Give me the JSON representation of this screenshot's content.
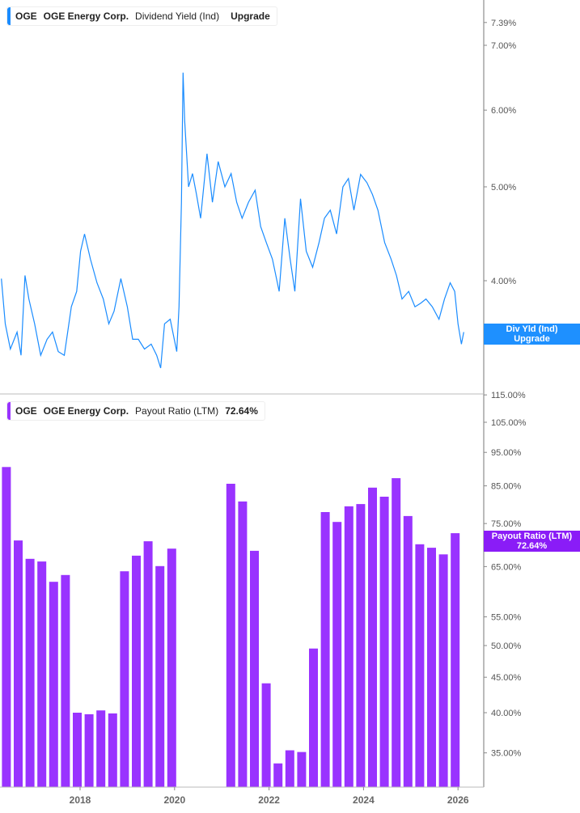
{
  "colors": {
    "yield_line": "#1a8cff",
    "payout_bar": "#9933ff",
    "yield_badge": "#1e90ff",
    "payout_badge": "#8a1cf7"
  },
  "top_legend": {
    "ticker": "OGE",
    "company": "OGE Energy Corp.",
    "metric": "Dividend Yield (Ind)",
    "value": "Upgrade"
  },
  "bottom_legend": {
    "ticker": "OGE",
    "company": "OGE Energy Corp.",
    "metric": "Payout Ratio (LTM)",
    "value": "72.64%"
  },
  "top_badge": {
    "line1": "Div Yld (Ind)",
    "line2": "Upgrade"
  },
  "bottom_badge": {
    "line1": "Payout Ratio (LTM)",
    "line2": "72.64%"
  },
  "chart_data": [
    {
      "type": "line",
      "title": "Dividend Yield (Ind)",
      "y_scale": "log",
      "ylim": [
        3.2,
        7.5
      ],
      "y_ticks": [
        "7.39%",
        "7.00%",
        "6.00%",
        "5.00%",
        "4.00%"
      ],
      "y_tick_values": [
        7.39,
        7.0,
        6.0,
        5.0,
        4.0
      ],
      "series": [
        {
          "name": "Dividend Yield (Ind)",
          "points": [
            [
              "2016-05-01",
              4.02
            ],
            [
              "2016-06-01",
              3.61
            ],
            [
              "2016-07-10",
              3.4
            ],
            [
              "2016-09-01",
              3.54
            ],
            [
              "2016-10-01",
              3.35
            ],
            [
              "2016-11-01",
              4.05
            ],
            [
              "2016-12-01",
              3.83
            ],
            [
              "2017-01-15",
              3.61
            ],
            [
              "2017-03-01",
              3.35
            ],
            [
              "2017-04-20",
              3.48
            ],
            [
              "2017-06-01",
              3.54
            ],
            [
              "2017-07-15",
              3.38
            ],
            [
              "2017-09-01",
              3.35
            ],
            [
              "2017-10-25",
              3.76
            ],
            [
              "2017-12-05",
              3.9
            ],
            [
              "2018-01-05",
              4.29
            ],
            [
              "2018-02-05",
              4.47
            ],
            [
              "2018-03-20",
              4.21
            ],
            [
              "2018-05-10",
              3.98
            ],
            [
              "2018-06-28",
              3.83
            ],
            [
              "2018-08-10",
              3.61
            ],
            [
              "2018-09-20",
              3.72
            ],
            [
              "2018-11-12",
              4.02
            ],
            [
              "2019-01-01",
              3.76
            ],
            [
              "2019-02-12",
              3.48
            ],
            [
              "2019-03-25",
              3.48
            ],
            [
              "2019-05-12",
              3.4
            ],
            [
              "2019-07-03",
              3.44
            ],
            [
              "2019-08-15",
              3.35
            ],
            [
              "2019-09-15",
              3.25
            ],
            [
              "2019-10-15",
              3.61
            ],
            [
              "2019-11-28",
              3.65
            ],
            [
              "2020-01-18",
              3.38
            ],
            [
              "2020-02-05",
              3.76
            ],
            [
              "2020-02-24",
              4.82
            ],
            [
              "2020-03-06",
              6.56
            ],
            [
              "2020-03-18",
              5.85
            ],
            [
              "2020-04-18",
              5.0
            ],
            [
              "2020-05-18",
              5.16
            ],
            [
              "2020-06-18",
              4.91
            ],
            [
              "2020-07-20",
              4.64
            ],
            [
              "2020-09-08",
              5.41
            ],
            [
              "2020-10-20",
              4.82
            ],
            [
              "2020-12-03",
              5.31
            ],
            [
              "2021-01-25",
              5.0
            ],
            [
              "2021-03-12",
              5.16
            ],
            [
              "2021-04-25",
              4.82
            ],
            [
              "2021-06-06",
              4.64
            ],
            [
              "2021-07-25",
              4.82
            ],
            [
              "2021-09-15",
              4.96
            ],
            [
              "2021-10-27",
              4.55
            ],
            [
              "2021-12-10",
              4.38
            ],
            [
              "2022-01-27",
              4.21
            ],
            [
              "2022-03-18",
              3.9
            ],
            [
              "2022-05-01",
              4.64
            ],
            [
              "2022-06-12",
              4.21
            ],
            [
              "2022-07-18",
              3.9
            ],
            [
              "2022-09-01",
              4.86
            ],
            [
              "2022-10-15",
              4.29
            ],
            [
              "2022-12-03",
              4.13
            ],
            [
              "2023-01-22",
              4.38
            ],
            [
              "2023-03-03",
              4.64
            ],
            [
              "2023-04-18",
              4.73
            ],
            [
              "2023-06-06",
              4.47
            ],
            [
              "2023-07-24",
              5.0
            ],
            [
              "2023-09-06",
              5.1
            ],
            [
              "2023-10-18",
              4.73
            ],
            [
              "2023-12-09",
              5.15
            ],
            [
              "2024-01-27",
              5.05
            ],
            [
              "2024-03-09",
              4.91
            ],
            [
              "2024-04-21",
              4.73
            ],
            [
              "2024-06-12",
              4.38
            ],
            [
              "2024-08-01",
              4.21
            ],
            [
              "2024-09-12",
              4.05
            ],
            [
              "2024-10-25",
              3.83
            ],
            [
              "2024-12-15",
              3.9
            ],
            [
              "2025-02-03",
              3.76
            ],
            [
              "2025-03-15",
              3.79
            ],
            [
              "2025-04-27",
              3.83
            ],
            [
              "2025-06-15",
              3.76
            ],
            [
              "2025-08-06",
              3.65
            ],
            [
              "2025-09-18",
              3.83
            ],
            [
              "2025-11-01",
              3.98
            ],
            [
              "2025-12-06",
              3.9
            ],
            [
              "2026-01-01",
              3.61
            ],
            [
              "2026-01-27",
              3.44
            ],
            [
              "2026-02-15",
              3.54
            ]
          ]
        }
      ]
    },
    {
      "type": "bar",
      "title": "Payout Ratio (LTM)",
      "y_scale": "log",
      "ylim": [
        31,
        118
      ],
      "y_ticks": [
        "115.00%",
        "105.00%",
        "95.00%",
        "85.00%",
        "75.00%",
        "65.00%",
        "55.00%",
        "50.00%",
        "45.00%",
        "40.00%",
        "35.00%"
      ],
      "y_tick_values": [
        115,
        105,
        95,
        85,
        75,
        65,
        55,
        50,
        45,
        40,
        35
      ],
      "x_ticks": [
        "2018",
        "2020",
        "2022",
        "2024",
        "2026"
      ],
      "categories": [
        "2016-03",
        "2016-06",
        "2016-09",
        "2016-12",
        "2017-03",
        "2017-06",
        "2017-09",
        "2017-12",
        "2018-03",
        "2018-06",
        "2018-09",
        "2018-12",
        "2019-03",
        "2019-06",
        "2019-09",
        "2019-12",
        "2021-03",
        "2021-06",
        "2021-09",
        "2021-12",
        "2022-03",
        "2022-06",
        "2022-09",
        "2022-12",
        "2023-03",
        "2023-06",
        "2023-09",
        "2023-12",
        "2024-03",
        "2024-06",
        "2024-09",
        "2024-12",
        "2025-03",
        "2025-06",
        "2025-09",
        "2025-12"
      ],
      "values": [
        82.9,
        90.5,
        70.9,
        66.7,
        66.1,
        61.8,
        63.2,
        40.0,
        39.8,
        40.3,
        39.9,
        64.0,
        67.4,
        70.7,
        65.1,
        69.0,
        85.6,
        80.7,
        68.5,
        44.1,
        33.8,
        35.3,
        35.1,
        49.5,
        77.9,
        75.4,
        79.4,
        80.0,
        84.5,
        82.0,
        87.2,
        76.9,
        70.0,
        69.2,
        67.7,
        72.64
      ]
    }
  ]
}
